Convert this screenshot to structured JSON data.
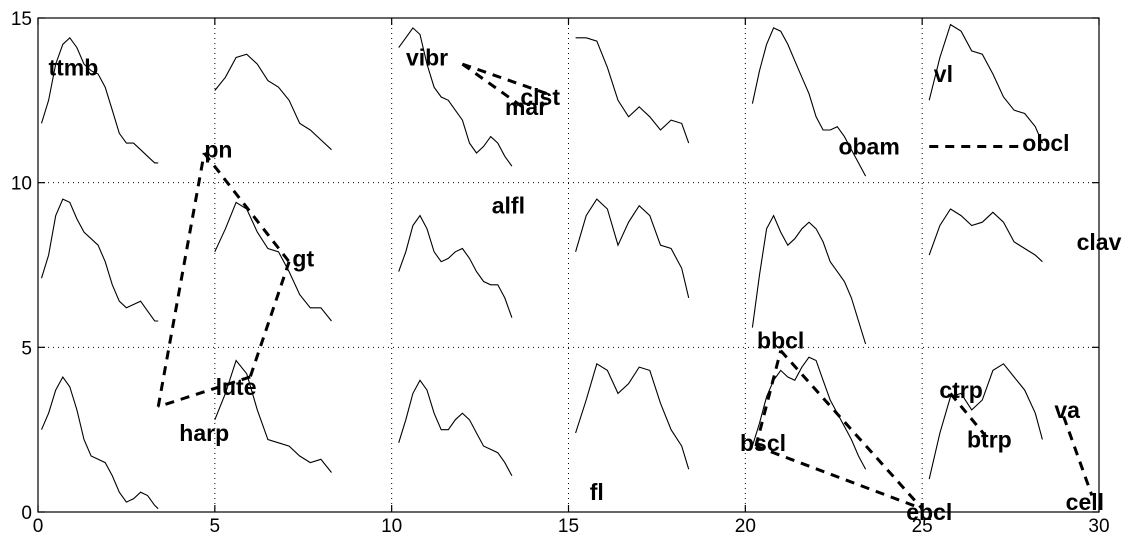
{
  "chart_data": {
    "type": "scatter",
    "title": "",
    "xlabel": "",
    "ylabel": "",
    "xlim": [
      0,
      30
    ],
    "ylim": [
      0,
      15
    ],
    "xticks": [
      0,
      5,
      10,
      15,
      20,
      25,
      30
    ],
    "yticks": [
      0,
      5,
      10,
      15
    ],
    "xtick_labels": [
      "0",
      "5",
      "10",
      "15",
      "20",
      "25",
      "30"
    ],
    "ytick_labels": [
      "0",
      "5",
      "10",
      "15"
    ],
    "grid": true,
    "labels": [
      {
        "text": "ttmb",
        "x": 1.0,
        "y": 13.5
      },
      {
        "text": "vibr",
        "x": 11.0,
        "y": 13.8
      },
      {
        "text": "clst",
        "x": 14.2,
        "y": 12.6
      },
      {
        "text": "mar",
        "x": 13.8,
        "y": 12.3
      },
      {
        "text": "vl",
        "x": 25.6,
        "y": 13.3
      },
      {
        "text": "obam",
        "x": 23.5,
        "y": 11.1
      },
      {
        "text": "obcl",
        "x": 28.5,
        "y": 11.2
      },
      {
        "text": "pn",
        "x": 5.1,
        "y": 11.0
      },
      {
        "text": "alfl",
        "x": 13.3,
        "y": 9.3
      },
      {
        "text": "gt",
        "x": 7.5,
        "y": 7.7
      },
      {
        "text": "clav",
        "x": 30.0,
        "y": 8.2
      },
      {
        "text": "bbcl",
        "x": 21.0,
        "y": 5.2
      },
      {
        "text": "lute",
        "x": 5.6,
        "y": 3.8
      },
      {
        "text": "ctrp",
        "x": 26.1,
        "y": 3.7
      },
      {
        "text": "va",
        "x": 29.1,
        "y": 3.1
      },
      {
        "text": "harp",
        "x": 4.7,
        "y": 2.4
      },
      {
        "text": "bscl",
        "x": 20.5,
        "y": 2.1
      },
      {
        "text": "btrp",
        "x": 26.9,
        "y": 2.2
      },
      {
        "text": "fl",
        "x": 15.8,
        "y": 0.6
      },
      {
        "text": "cell",
        "x": 29.6,
        "y": 0.3
      },
      {
        "text": "ebcl",
        "x": 25.2,
        "y": 0.0
      }
    ],
    "links": [
      {
        "from": "pn",
        "to": "gt",
        "x": [
          4.7,
          7.1
        ],
        "y": [
          10.9,
          7.6
        ]
      },
      {
        "from": "gt",
        "to": "lute",
        "x": [
          7.1,
          6.0
        ],
        "y": [
          7.6,
          4.1
        ]
      },
      {
        "from": "lute",
        "to": "harp",
        "x": [
          6.0,
          3.4
        ],
        "y": [
          4.1,
          3.2
        ]
      },
      {
        "from": "harp",
        "to": "pn",
        "x": [
          3.4,
          4.7
        ],
        "y": [
          3.2,
          10.9
        ]
      },
      {
        "from": "vibr",
        "to": "clst",
        "x": [
          12.0,
          14.4
        ],
        "y": [
          13.6,
          12.7
        ]
      },
      {
        "from": "vibr",
        "to": "mar",
        "x": [
          12.0,
          13.7
        ],
        "y": [
          13.6,
          12.3
        ]
      },
      {
        "from": "obam",
        "to": "obcl",
        "x": [
          25.2,
          27.9
        ],
        "y": [
          11.1,
          11.1
        ]
      },
      {
        "from": "bscl",
        "to": "bbcl",
        "x": [
          20.3,
          21.0
        ],
        "y": [
          2.0,
          4.9
        ]
      },
      {
        "from": "bbcl",
        "to": "ebcl",
        "x": [
          21.0,
          25.0
        ],
        "y": [
          4.9,
          0.1
        ]
      },
      {
        "from": "bscl",
        "to": "ebcl",
        "x": [
          20.3,
          25.0
        ],
        "y": [
          2.0,
          0.1
        ]
      },
      {
        "from": "ctrp",
        "to": "btrp",
        "x": [
          25.8,
          26.8
        ],
        "y": [
          3.6,
          2.3
        ]
      },
      {
        "from": "va",
        "to": "cell",
        "x": [
          29.0,
          29.8
        ],
        "y": [
          2.9,
          0.5
        ]
      }
    ],
    "spectra": [
      {
        "x": [
          0.1,
          0.3,
          0.5,
          0.7,
          0.9,
          1.1,
          1.3,
          1.5,
          1.7,
          1.9,
          2.1,
          2.3,
          2.5,
          2.7,
          2.9,
          3.1,
          3.3,
          3.4
        ],
        "y": [
          11.8,
          12.5,
          13.6,
          14.2,
          14.4,
          14.1,
          13.6,
          13.4,
          13.3,
          12.9,
          12.2,
          11.5,
          11.2,
          11.2,
          11.0,
          10.8,
          10.6,
          10.6
        ]
      },
      {
        "x": [
          5.0,
          5.3,
          5.6,
          5.9,
          6.2,
          6.5,
          6.8,
          7.1,
          7.4,
          7.7,
          8.0,
          8.3
        ],
        "y": [
          12.8,
          13.2,
          13.8,
          13.9,
          13.6,
          13.1,
          12.9,
          12.5,
          11.8,
          11.6,
          11.3,
          11.0
        ]
      },
      {
        "x": [
          0.1,
          0.3,
          0.5,
          0.7,
          0.9,
          1.1,
          1.3,
          1.5,
          1.7,
          1.9,
          2.1,
          2.3,
          2.5,
          2.7,
          2.9,
          3.1,
          3.3,
          3.4
        ],
        "y": [
          7.1,
          7.8,
          9.0,
          9.5,
          9.4,
          8.9,
          8.5,
          8.3,
          8.1,
          7.6,
          6.9,
          6.4,
          6.2,
          6.3,
          6.4,
          6.1,
          5.8,
          5.8
        ]
      },
      {
        "x": [
          5.0,
          5.3,
          5.6,
          5.9,
          6.2,
          6.5,
          6.8,
          7.1,
          7.4,
          7.7,
          8.0,
          8.3
        ],
        "y": [
          7.9,
          8.6,
          9.4,
          9.2,
          8.5,
          8.0,
          7.9,
          7.3,
          6.6,
          6.2,
          6.2,
          5.8
        ]
      },
      {
        "x": [
          0.1,
          0.3,
          0.5,
          0.7,
          0.9,
          1.1,
          1.3,
          1.5,
          1.7,
          1.9,
          2.1,
          2.3,
          2.5,
          2.7,
          2.9,
          3.1,
          3.3,
          3.4
        ],
        "y": [
          2.5,
          3.0,
          3.7,
          4.1,
          3.8,
          3.1,
          2.2,
          1.7,
          1.6,
          1.5,
          1.1,
          0.6,
          0.3,
          0.4,
          0.6,
          0.5,
          0.2,
          0.1
        ]
      },
      {
        "x": [
          5.0,
          5.3,
          5.6,
          5.9,
          6.2,
          6.5,
          6.8,
          7.1,
          7.4,
          7.7,
          8.0,
          8.3
        ],
        "y": [
          2.8,
          3.6,
          4.6,
          4.2,
          3.1,
          2.2,
          2.1,
          2.0,
          1.7,
          1.5,
          1.6,
          1.2
        ]
      },
      {
        "x": [
          10.2,
          10.4,
          10.6,
          10.8,
          11.0,
          11.2,
          11.4,
          11.6,
          11.8,
          12.0,
          12.2,
          12.4,
          12.6,
          12.8,
          13.0,
          13.2,
          13.4
        ],
        "y": [
          14.1,
          14.4,
          14.7,
          14.5,
          13.6,
          12.9,
          12.6,
          12.5,
          12.2,
          11.9,
          11.2,
          10.9,
          11.1,
          11.4,
          11.2,
          10.8,
          10.5
        ]
      },
      {
        "x": [
          10.2,
          10.4,
          10.6,
          10.8,
          11.0,
          11.2,
          11.4,
          11.6,
          11.8,
          12.0,
          12.2,
          12.4,
          12.6,
          12.8,
          13.0,
          13.2,
          13.4
        ],
        "y": [
          7.3,
          7.9,
          8.7,
          9.0,
          8.6,
          7.9,
          7.6,
          7.7,
          7.9,
          8.0,
          7.7,
          7.3,
          7.0,
          6.9,
          6.9,
          6.5,
          5.9
        ]
      },
      {
        "x": [
          10.2,
          10.4,
          10.6,
          10.8,
          11.0,
          11.2,
          11.4,
          11.6,
          11.8,
          12.0,
          12.2,
          12.4,
          12.6,
          12.8,
          13.0,
          13.2,
          13.4
        ],
        "y": [
          2.1,
          2.8,
          3.6,
          4.0,
          3.7,
          3.0,
          2.5,
          2.5,
          2.8,
          3.0,
          2.8,
          2.4,
          2.0,
          1.9,
          1.8,
          1.5,
          1.1
        ]
      },
      {
        "x": [
          15.2,
          15.5,
          15.8,
          16.1,
          16.4,
          16.7,
          17.0,
          17.3,
          17.6,
          17.9,
          18.2,
          18.4
        ],
        "y": [
          14.4,
          14.4,
          14.3,
          13.5,
          12.5,
          12.0,
          12.3,
          12.0,
          11.6,
          11.9,
          11.8,
          11.2
        ]
      },
      {
        "x": [
          15.2,
          15.5,
          15.8,
          16.1,
          16.4,
          16.7,
          17.0,
          17.3,
          17.6,
          17.9,
          18.2,
          18.4
        ],
        "y": [
          7.9,
          9.0,
          9.5,
          9.2,
          8.1,
          8.8,
          9.3,
          9.0,
          8.1,
          8.0,
          7.4,
          6.5
        ]
      },
      {
        "x": [
          15.2,
          15.5,
          15.8,
          16.1,
          16.4,
          16.7,
          17.0,
          17.3,
          17.6,
          17.9,
          18.2,
          18.4
        ],
        "y": [
          2.4,
          3.4,
          4.5,
          4.3,
          3.6,
          3.9,
          4.4,
          4.3,
          3.3,
          2.5,
          2.0,
          1.3
        ]
      },
      {
        "x": [
          20.2,
          20.4,
          20.6,
          20.8,
          21.0,
          21.2,
          21.4,
          21.6,
          21.8,
          22.0,
          22.2,
          22.4,
          22.6,
          22.8,
          23.0,
          23.2,
          23.4
        ],
        "y": [
          12.4,
          13.4,
          14.2,
          14.7,
          14.6,
          14.2,
          13.7,
          13.2,
          12.7,
          12.0,
          11.6,
          11.6,
          11.7,
          11.4,
          11.0,
          10.6,
          10.2
        ]
      },
      {
        "x": [
          20.2,
          20.4,
          20.6,
          20.8,
          21.0,
          21.2,
          21.4,
          21.6,
          21.8,
          22.0,
          22.2,
          22.4,
          22.6,
          22.8,
          23.0,
          23.2,
          23.4
        ],
        "y": [
          5.6,
          7.2,
          8.6,
          9.0,
          8.5,
          8.1,
          8.3,
          8.6,
          8.8,
          8.6,
          8.2,
          7.6,
          7.3,
          7.0,
          6.5,
          5.8,
          5.1
        ]
      },
      {
        "x": [
          20.2,
          20.4,
          20.6,
          20.8,
          21.0,
          21.2,
          21.4,
          21.6,
          21.8,
          22.0,
          22.2,
          22.4,
          22.6,
          22.8,
          23.0,
          23.2,
          23.4
        ],
        "y": [
          2.0,
          2.7,
          3.5,
          4.0,
          4.3,
          4.1,
          4.0,
          4.4,
          4.7,
          4.6,
          4.0,
          3.4,
          3.0,
          2.6,
          2.2,
          1.7,
          1.3
        ]
      },
      {
        "x": [
          25.2,
          25.5,
          25.8,
          26.1,
          26.4,
          26.7,
          27.0,
          27.3,
          27.6,
          27.9,
          28.2,
          28.4
        ],
        "y": [
          12.5,
          13.8,
          14.8,
          14.6,
          14.0,
          13.9,
          13.3,
          12.6,
          12.2,
          12.1,
          11.7,
          11.2
        ]
      },
      {
        "x": [
          25.2,
          25.5,
          25.8,
          26.1,
          26.4,
          26.7,
          27.0,
          27.3,
          27.6,
          27.9,
          28.2,
          28.4
        ],
        "y": [
          7.8,
          8.7,
          9.2,
          9.0,
          8.7,
          8.8,
          9.1,
          8.8,
          8.2,
          8.0,
          7.8,
          7.6
        ]
      },
      {
        "x": [
          25.2,
          25.5,
          25.8,
          26.1,
          26.4,
          26.7,
          27.0,
          27.3,
          27.6,
          27.9,
          28.2,
          28.4
        ],
        "y": [
          1.0,
          2.4,
          3.5,
          3.6,
          3.1,
          3.4,
          4.3,
          4.5,
          4.1,
          3.7,
          3.0,
          2.2
        ]
      }
    ]
  }
}
